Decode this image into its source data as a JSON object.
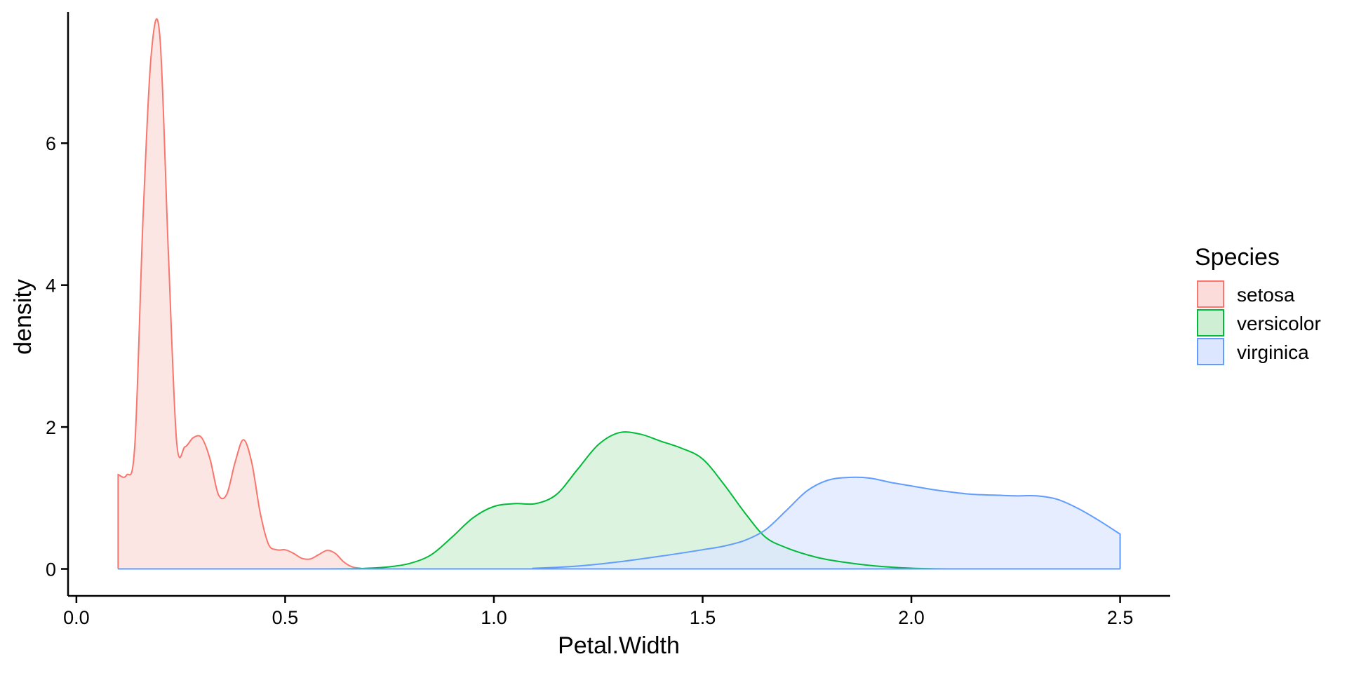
{
  "chart_data": {
    "type": "area",
    "subtype": "density",
    "xlabel": "Petal.Width",
    "ylabel": "density",
    "xlim": [
      -0.02,
      2.62
    ],
    "ylim": [
      -0.38,
      7.85
    ],
    "x_ticks": [
      0.0,
      0.5,
      1.0,
      1.5,
      2.0,
      2.5
    ],
    "x_tick_labels": [
      "0.0",
      "0.5",
      "1.0",
      "1.5",
      "2.0",
      "2.5"
    ],
    "y_ticks": [
      0,
      2,
      4,
      6
    ],
    "y_tick_labels": [
      "0",
      "2",
      "4",
      "6"
    ],
    "grid": false,
    "legend": {
      "title": "Species",
      "placement": "right",
      "entries": [
        "setosa",
        "versicolor",
        "virginica"
      ]
    },
    "series": [
      {
        "name": "setosa",
        "color": "#F8766D",
        "fill": "#FBDCDA",
        "x": [
          0.1,
          0.12,
          0.14,
          0.16,
          0.18,
          0.2,
          0.22,
          0.24,
          0.26,
          0.28,
          0.3,
          0.32,
          0.34,
          0.36,
          0.38,
          0.4,
          0.42,
          0.44,
          0.46,
          0.48,
          0.5,
          0.52,
          0.54,
          0.56,
          0.58,
          0.6,
          0.62,
          0.64,
          0.66,
          0.68,
          0.7,
          0.8,
          1.0,
          1.5,
          2.0,
          2.5
        ],
        "y": [
          1.33,
          1.32,
          1.75,
          5.0,
          7.3,
          7.5,
          4.5,
          1.8,
          1.72,
          1.85,
          1.85,
          1.55,
          1.05,
          1.05,
          1.5,
          1.82,
          1.5,
          0.8,
          0.35,
          0.27,
          0.27,
          0.22,
          0.15,
          0.14,
          0.2,
          0.26,
          0.22,
          0.1,
          0.03,
          0.01,
          0.0,
          0.0,
          0.0,
          0.0,
          0.0,
          0.0
        ]
      },
      {
        "name": "versicolor",
        "color": "#00BA38",
        "fill": "#CFEFD4",
        "x": [
          0.1,
          0.6,
          0.7,
          0.75,
          0.8,
          0.85,
          0.9,
          0.95,
          1.0,
          1.05,
          1.1,
          1.15,
          1.2,
          1.25,
          1.3,
          1.35,
          1.4,
          1.45,
          1.5,
          1.55,
          1.6,
          1.65,
          1.7,
          1.75,
          1.8,
          1.9,
          2.0,
          2.1,
          2.2,
          2.5
        ],
        "y": [
          0.0,
          0.0,
          0.01,
          0.03,
          0.08,
          0.2,
          0.45,
          0.72,
          0.88,
          0.92,
          0.92,
          1.05,
          1.4,
          1.75,
          1.92,
          1.9,
          1.8,
          1.7,
          1.55,
          1.2,
          0.8,
          0.45,
          0.3,
          0.2,
          0.13,
          0.05,
          0.01,
          0.0,
          0.0,
          0.0
        ]
      },
      {
        "name": "virginica",
        "color": "#619CFF",
        "fill": "#DCE6FF",
        "x": [
          0.1,
          1.0,
          1.1,
          1.2,
          1.3,
          1.4,
          1.5,
          1.55,
          1.6,
          1.65,
          1.7,
          1.75,
          1.8,
          1.85,
          1.9,
          1.95,
          2.0,
          2.05,
          2.1,
          2.15,
          2.2,
          2.25,
          2.3,
          2.35,
          2.4,
          2.45,
          2.5
        ],
        "y": [
          0.0,
          0.0,
          0.01,
          0.04,
          0.1,
          0.18,
          0.27,
          0.32,
          0.4,
          0.55,
          0.82,
          1.1,
          1.25,
          1.29,
          1.28,
          1.22,
          1.17,
          1.12,
          1.08,
          1.05,
          1.04,
          1.03,
          1.03,
          0.98,
          0.85,
          0.68,
          0.49
        ]
      }
    ]
  }
}
